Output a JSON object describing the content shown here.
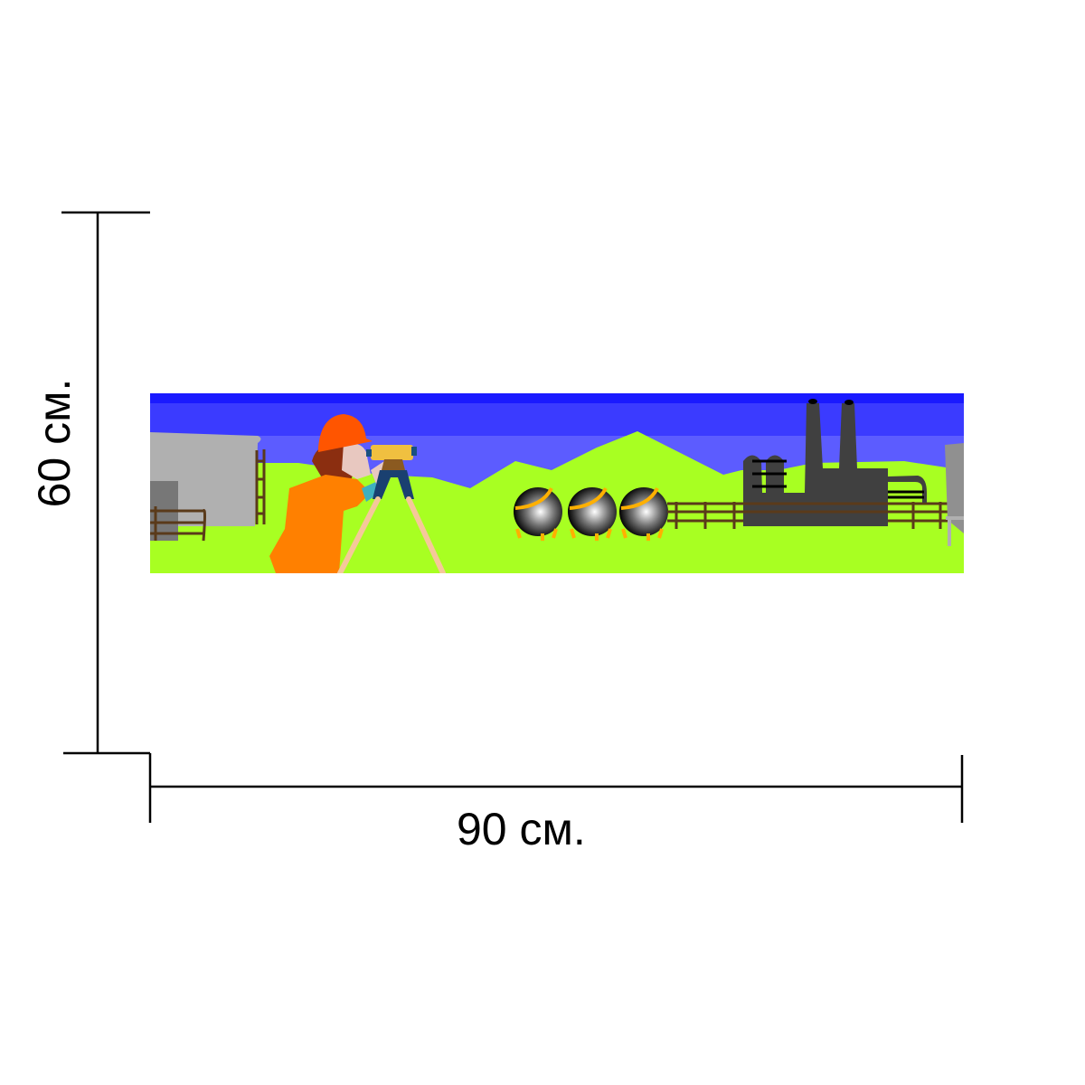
{
  "dimensions": {
    "height_label": "60 см.",
    "width_label": "90 см."
  },
  "banner": {
    "scene": "surveyor-with-level-industrial-landscape",
    "colors": {
      "sky_top": "#1a1aff",
      "sky_mid": "#3b3bff",
      "sky_low": "#5c5cff",
      "grass": "#a8ff22",
      "suit": "#ff8000",
      "helmet": "#ff5500",
      "factory": "#404040",
      "fence": "#5a3a1a",
      "tank": "#b0b0b0"
    }
  }
}
